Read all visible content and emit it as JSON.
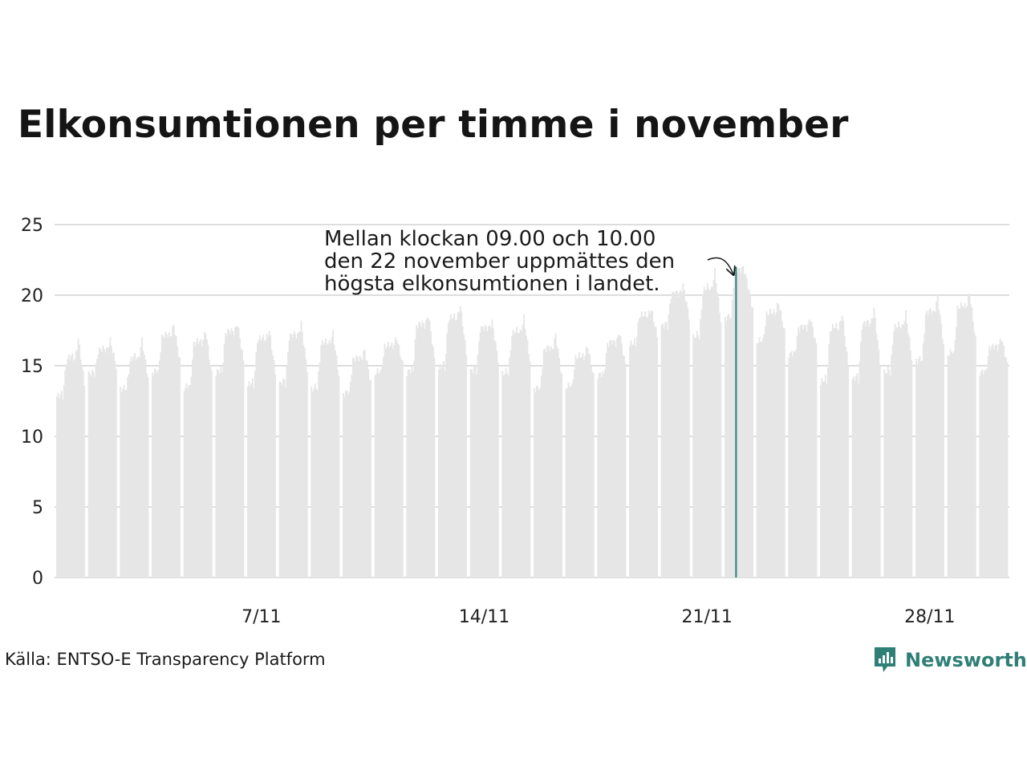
{
  "title": "Elkonsumtionen per timme i november",
  "source": "Källa: ENTSO-E Transparency Platform",
  "brand": {
    "name": "Newsworthy",
    "icon": "newsworthy-logo-icon",
    "color": "#2f7f77"
  },
  "chart_data": {
    "type": "bar",
    "title": "Elkonsumtionen per timme i november",
    "xlabel": "",
    "ylabel": "",
    "ylim": [
      0,
      25
    ],
    "yticks": [
      "0",
      "5",
      "10",
      "15",
      "20",
      "25"
    ],
    "xticks": [
      {
        "day": 7,
        "label": "7/11"
      },
      {
        "day": 14,
        "label": "14/11"
      },
      {
        "day": 21,
        "label": "21/11"
      },
      {
        "day": 28,
        "label": "28/11"
      }
    ],
    "grid": true,
    "colors": {
      "bars": "#e6e6e6",
      "highlight": "#2a8077",
      "grid": "#dddddd"
    },
    "hours_per_day": 24,
    "daily_profile": [
      [
        12.8,
        15.3,
        16.9
      ],
      [
        14.4,
        16.0,
        16.8
      ],
      [
        13.3,
        15.3,
        16.8
      ],
      [
        14.5,
        17.0,
        17.9
      ],
      [
        13.4,
        16.5,
        17.5
      ],
      [
        14.5,
        17.3,
        18.0
      ],
      [
        13.6,
        16.8,
        17.5
      ],
      [
        13.7,
        17.0,
        18.0
      ],
      [
        13.3,
        16.5,
        17.3
      ],
      [
        13.0,
        15.4,
        16.1
      ],
      [
        14.5,
        16.3,
        17.0
      ],
      [
        14.5,
        17.8,
        18.6
      ],
      [
        14.8,
        18.2,
        19.3
      ],
      [
        14.6,
        17.6,
        18.1
      ],
      [
        14.4,
        17.2,
        18.4
      ],
      [
        13.3,
        16.0,
        17.2
      ],
      [
        13.5,
        15.5,
        16.4
      ],
      [
        14.3,
        16.5,
        17.4
      ],
      [
        16.5,
        18.5,
        19.0
      ],
      [
        17.8,
        20.0,
        20.7
      ],
      [
        17.0,
        20.2,
        21.7
      ],
      [
        18.3,
        22.0,
        21.1
      ],
      [
        16.7,
        18.6,
        19.5
      ],
      [
        15.8,
        17.6,
        18.4
      ],
      [
        13.8,
        17.5,
        18.7
      ],
      [
        14.0,
        17.8,
        19.0
      ],
      [
        14.5,
        17.6,
        18.7
      ],
      [
        15.3,
        18.6,
        19.9
      ],
      [
        15.8,
        19.0,
        20.2
      ],
      [
        14.5,
        16.2,
        17.0
      ]
    ],
    "peak": {
      "day": 22,
      "hour": 9,
      "value": 22.0
    },
    "annotation": [
      "Mellan klockan 09.00 och 10.00",
      "den 22 november uppmättes den",
      "högsta elkonsumtionen i landet."
    ]
  }
}
